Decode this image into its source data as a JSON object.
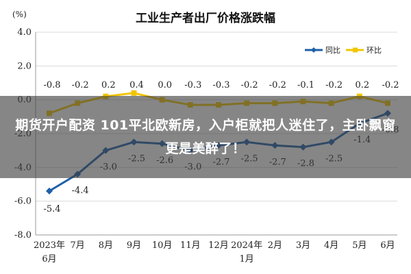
{
  "chart_data": {
    "type": "line",
    "title": "工业生产者出厂价格涨跌幅",
    "ylabel": "(%)",
    "ylim": [
      -8.0,
      4.0
    ],
    "yticks": [
      "4.0",
      "2.0",
      "0.0",
      "-2.0",
      "-4.0",
      "-6.0",
      "-8.0"
    ],
    "x_tick_labels": [
      [
        "2023年",
        "6月"
      ],
      [
        "7月"
      ],
      [
        "8月"
      ],
      [
        "9月"
      ],
      [
        "10月"
      ],
      [
        "11月"
      ],
      [
        "12月"
      ],
      [
        "2024年",
        "1月"
      ],
      [
        "2月"
      ],
      [
        "3月"
      ],
      [
        "4月"
      ],
      [
        "5月"
      ],
      [
        "6月"
      ]
    ],
    "legend_position": "top-right",
    "series": [
      {
        "name": "同比",
        "color": "#1f5fa8",
        "values": [
          -5.4,
          -4.4,
          -3.0,
          -2.5,
          -2.6,
          -3.0,
          -2.7,
          -2.5,
          -2.7,
          -2.8,
          -2.5,
          -1.4,
          -0.8
        ],
        "labels": [
          "-5.4",
          "-4.4",
          "-3.0",
          "-2.5",
          "-2.6",
          "-3.0",
          "-2.7",
          "-2.5",
          "-2.7",
          "-2.8",
          "-2.5",
          "-1.4",
          "-0.8"
        ]
      },
      {
        "name": "环比",
        "color": "#f2c500",
        "values": [
          -0.8,
          -0.2,
          0.2,
          0.4,
          0.0,
          -0.3,
          -0.3,
          -0.2,
          -0.2,
          -0.1,
          -0.2,
          0.2,
          -0.2
        ],
        "labels": [
          "-0.8",
          "-0.2",
          "0.2",
          "0.4",
          "0.0",
          "-0.3",
          "-0.3",
          "-0.2",
          "-0.2",
          "-0.1",
          "-0.2",
          "0.2",
          "-0.2"
        ]
      }
    ]
  },
  "overlay": {
    "headline": "期货开户配资 101平北欧新房，入户柜就把人迷住了，主卧飘窗更是美醉了！"
  }
}
